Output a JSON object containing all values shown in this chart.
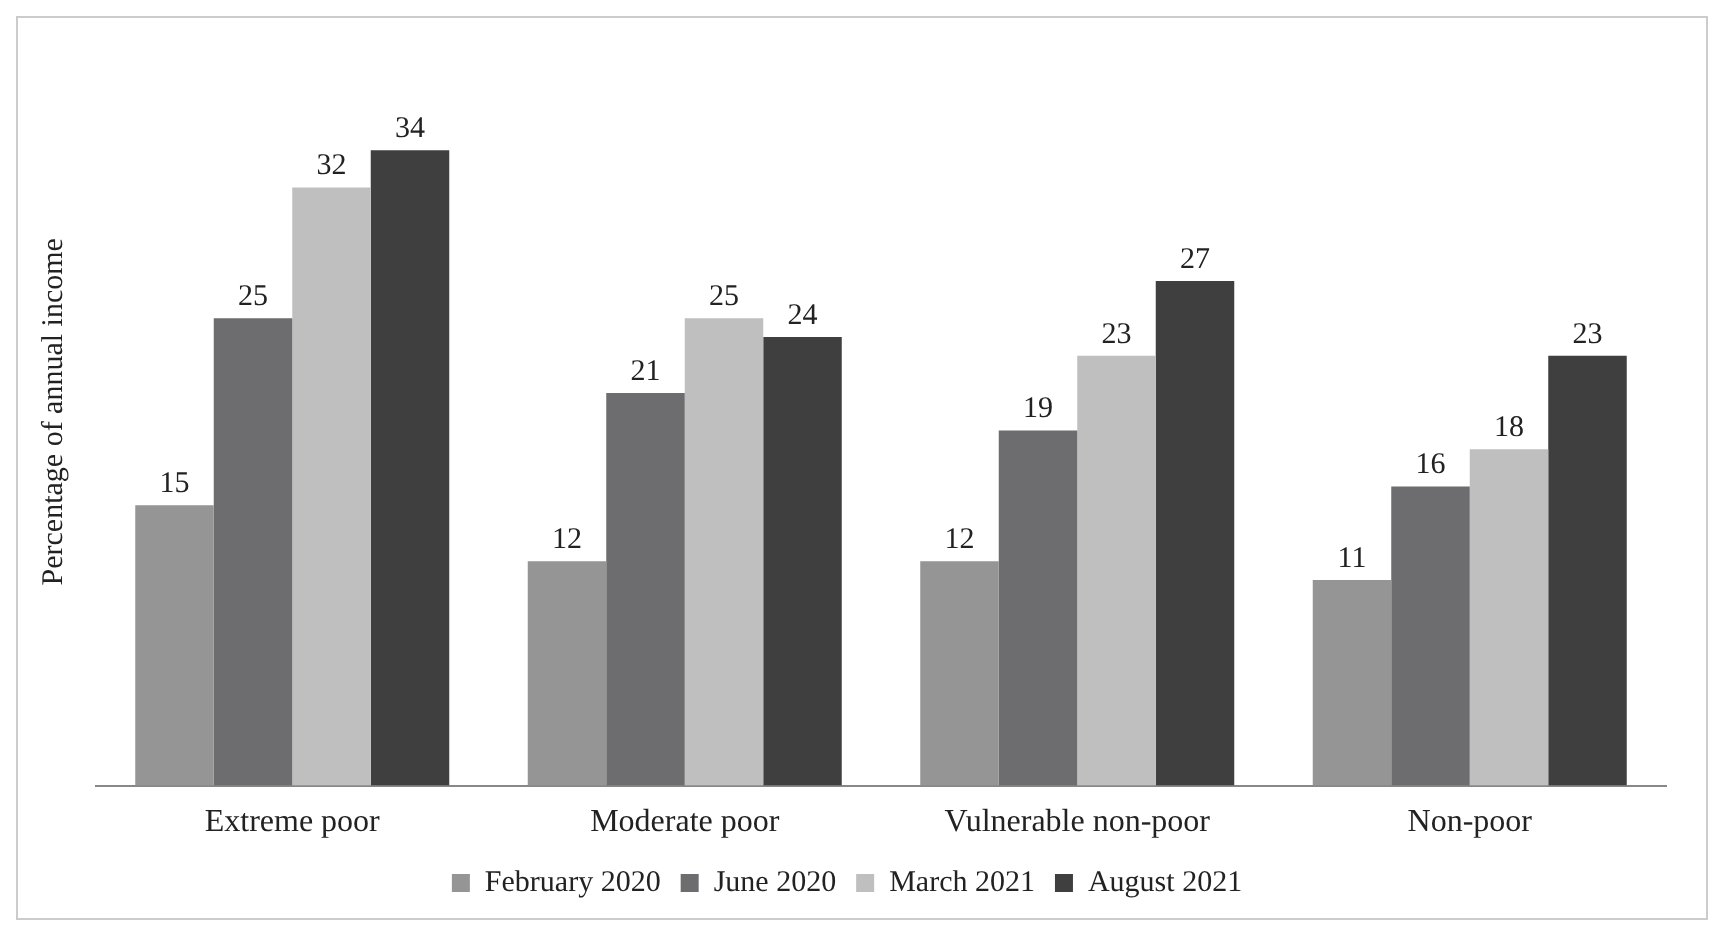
{
  "chart_data": {
    "type": "bar",
    "ylabel": "Percentage of annual income",
    "categories": [
      "Extreme poor",
      "Moderate poor",
      "Vulnerable non-poor",
      "Non-poor"
    ],
    "series": [
      {
        "name": "February 2020",
        "color": "#959595",
        "values": [
          15,
          12,
          12,
          11
        ]
      },
      {
        "name": "June 2020",
        "color": "#6d6d6f",
        "values": [
          25,
          21,
          19,
          16
        ]
      },
      {
        "name": "March 2021",
        "color": "#bfbfbf",
        "values": [
          32,
          25,
          23,
          18
        ]
      },
      {
        "name": "August 2021",
        "color": "#3f3f3f",
        "values": [
          34,
          24,
          27,
          23
        ]
      }
    ],
    "data_labels": true,
    "legend": "bottom",
    "grid": false
  }
}
